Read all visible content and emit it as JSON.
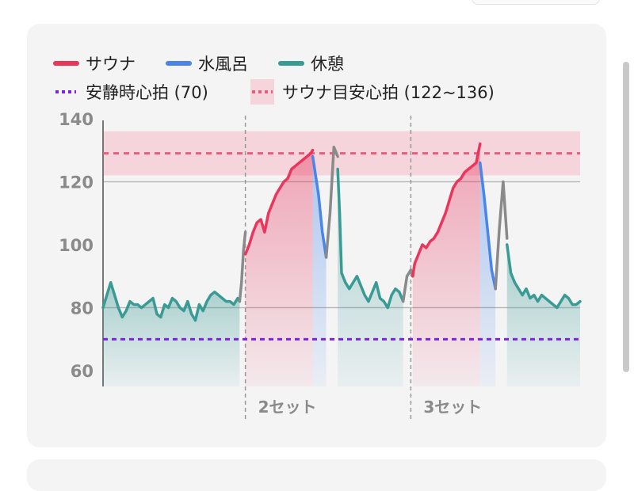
{
  "header": {
    "title_fragment": "",
    "pill": ""
  },
  "footer": {
    "notice_fragment": ""
  },
  "colors": {
    "sauna": "#e8365d",
    "water": "#4a86e8",
    "rest": "#3a9a94",
    "other": "#8a8a8a",
    "resting_hr": "#7a22e6",
    "sauna_target": "#e0607e",
    "target_band": "#f6d4dc"
  },
  "chart_data": {
    "type": "line",
    "title": "",
    "xlabel": "",
    "ylabel": "",
    "ylim": [
      55,
      145
    ],
    "yticks": [
      60,
      80,
      100,
      120,
      140
    ],
    "grid_lines": [
      80,
      120
    ],
    "legend": [
      {
        "key": "sauna",
        "label": "サウナ",
        "style": "solid"
      },
      {
        "key": "water",
        "label": "水風呂",
        "style": "solid"
      },
      {
        "key": "rest",
        "label": "休憩",
        "style": "solid"
      },
      {
        "key": "resting_hr",
        "label": "安静時心拍 (70)",
        "style": "dotted"
      },
      {
        "key": "sauna_target",
        "label": "サウナ目安心拍 (122~136)",
        "style": "band"
      }
    ],
    "reference_lines": [
      {
        "name": "安静時心拍",
        "value": 70
      },
      {
        "name": "サウナ目安心拍",
        "value": 129
      }
    ],
    "target_band": [
      122,
      136
    ],
    "set_markers": [
      {
        "x": 37,
        "label": "2セット"
      },
      {
        "x": 80,
        "label": "3セット"
      }
    ],
    "segments": [
      {
        "phase": "rest",
        "x": [
          0,
          1,
          2,
          3,
          4,
          5,
          6,
          7,
          8,
          9,
          10,
          11,
          12,
          13,
          14,
          15,
          16,
          17,
          18,
          19,
          20,
          21,
          22,
          23,
          24,
          25,
          26,
          27,
          28,
          29,
          30,
          31,
          32,
          33,
          34,
          35,
          35.5
        ],
        "y": [
          80,
          84,
          88,
          84,
          80,
          77,
          79,
          82,
          81,
          81,
          80,
          81,
          82,
          83,
          78,
          77,
          81,
          80,
          83,
          82,
          80,
          79,
          82,
          78,
          76,
          81,
          79,
          82,
          84,
          85,
          84,
          83,
          82,
          82,
          81,
          83,
          82
        ]
      },
      {
        "phase": "other",
        "x": [
          35.5,
          36,
          36.5,
          37
        ],
        "y": [
          82,
          88,
          98,
          104
        ]
      },
      {
        "phase": "sauna",
        "x": [
          37,
          38,
          39,
          40,
          41,
          42,
          43,
          44,
          45,
          46,
          47,
          48,
          49,
          50,
          51,
          52,
          53,
          54,
          54.5
        ],
        "y": [
          97,
          100,
          104,
          107,
          108,
          104,
          110,
          113,
          116,
          118,
          120,
          121,
          124,
          125,
          126,
          127,
          128,
          129,
          130
        ]
      },
      {
        "phase": "water",
        "x": [
          54.5,
          55,
          56,
          57,
          58
        ],
        "y": [
          128,
          124,
          116,
          104,
          96
        ]
      },
      {
        "phase": "other",
        "x": [
          58,
          59,
          60,
          61
        ],
        "y": [
          96,
          110,
          131,
          128
        ]
      },
      {
        "phase": "rest",
        "x": [
          61,
          61.5,
          62,
          63,
          64,
          65,
          66,
          67,
          68,
          69,
          70,
          71,
          72,
          73,
          74,
          75,
          76,
          77,
          78
        ],
        "y": [
          124,
          110,
          91,
          88,
          86,
          88,
          90,
          87,
          84,
          82,
          85,
          88,
          83,
          82,
          80,
          84,
          86,
          85,
          82
        ]
      },
      {
        "phase": "other",
        "x": [
          78,
          79,
          80,
          80.5
        ],
        "y": [
          82,
          90,
          92,
          90
        ]
      },
      {
        "phase": "sauna",
        "x": [
          80.5,
          81,
          82,
          83,
          84,
          85,
          86,
          87,
          88,
          89,
          90,
          91,
          92,
          93,
          94,
          95,
          96,
          97,
          98
        ],
        "y": [
          90,
          94,
          97,
          100,
          99,
          101,
          102,
          104,
          107,
          110,
          114,
          118,
          120,
          121,
          123,
          124,
          125,
          126,
          132
        ]
      },
      {
        "phase": "water",
        "x": [
          98,
          99,
          100,
          101,
          102
        ],
        "y": [
          126,
          116,
          104,
          92,
          86
        ]
      },
      {
        "phase": "other",
        "x": [
          102,
          103,
          104,
          105
        ],
        "y": [
          86,
          105,
          120,
          102
        ]
      },
      {
        "phase": "rest",
        "x": [
          105,
          106,
          107,
          108,
          109,
          110,
          111,
          112,
          113,
          114,
          115,
          116,
          117,
          118,
          119,
          120,
          121,
          122,
          123,
          124
        ],
        "y": [
          100,
          91,
          88,
          86,
          84,
          86,
          83,
          84,
          82,
          84,
          83,
          82,
          81,
          80,
          82,
          84,
          83,
          81,
          81,
          82
        ]
      }
    ]
  }
}
